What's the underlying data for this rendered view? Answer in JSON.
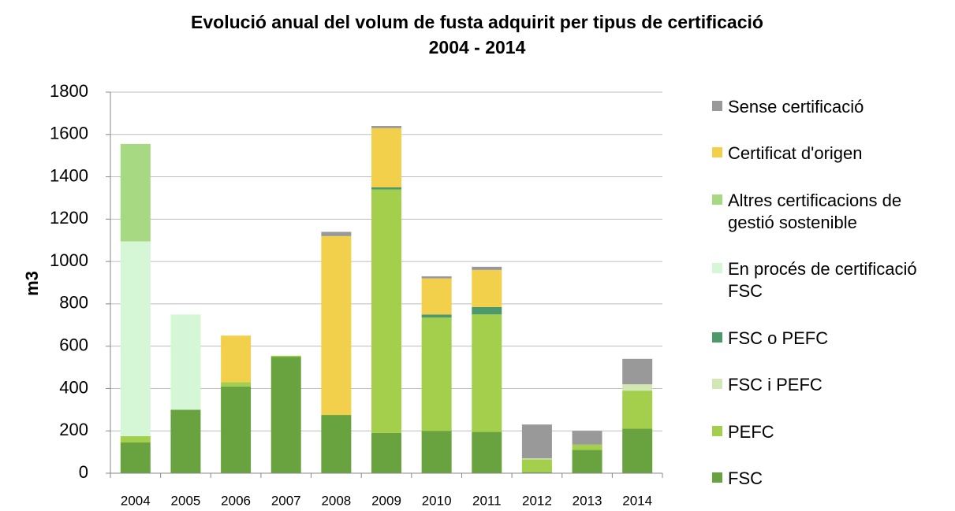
{
  "chart_data": {
    "type": "stacked_bar",
    "title": "Evolució anual del volum de fusta adquirit per tipus de certificació",
    "subtitle": "2004 - 2014",
    "y_label": "m3",
    "categories": [
      "2004",
      "2005",
      "2006",
      "2007",
      "2008",
      "2009",
      "2010",
      "2011",
      "2012",
      "2013",
      "2014"
    ],
    "series": [
      {
        "name": "FSC",
        "color": "#68a33f",
        "values": [
          145,
          300,
          410,
          550,
          275,
          190,
          200,
          195,
          5,
          110,
          210
        ]
      },
      {
        "name": "PEFC",
        "color": "#a3cf4d",
        "values": [
          30,
          0,
          20,
          5,
          0,
          1150,
          535,
          555,
          60,
          25,
          180
        ]
      },
      {
        "name": "FSC i PEFC",
        "color": "#d2e8b4",
        "values": [
          0,
          0,
          0,
          0,
          0,
          0,
          0,
          0,
          5,
          0,
          30
        ]
      },
      {
        "name": "FSC o PEFC",
        "color": "#4c9a6b",
        "values": [
          0,
          0,
          0,
          0,
          0,
          10,
          15,
          35,
          0,
          0,
          0
        ]
      },
      {
        "name": "En procés de certificació FSC",
        "color": "#d6f7d6",
        "values": [
          920,
          450,
          0,
          0,
          0,
          0,
          0,
          0,
          0,
          0,
          0
        ]
      },
      {
        "name": "Altres certificacions de gestió sostenible",
        "color": "#a7d983",
        "values": [
          460,
          0,
          0,
          0,
          0,
          0,
          0,
          0,
          0,
          0,
          0
        ]
      },
      {
        "name": "Certificat d'origen",
        "color": "#f3d04c",
        "values": [
          0,
          0,
          220,
          0,
          845,
          280,
          170,
          175,
          0,
          0,
          0
        ]
      },
      {
        "name": "Sense certificació",
        "color": "#999999",
        "values": [
          0,
          0,
          0,
          0,
          20,
          10,
          10,
          15,
          160,
          65,
          120
        ]
      }
    ],
    "ylim": [
      0,
      1800
    ],
    "yticks": [
      0,
      200,
      400,
      600,
      800,
      1000,
      1200,
      1400,
      1600,
      1800
    ],
    "grid": true,
    "legend": "right"
  }
}
